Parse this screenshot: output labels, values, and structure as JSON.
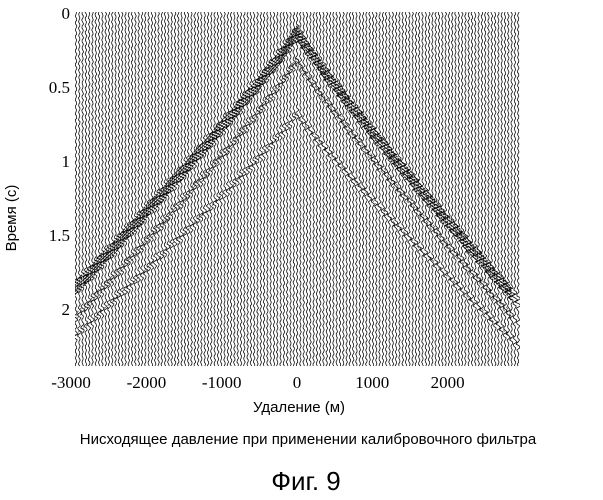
{
  "chart_data": {
    "type": "seismic-gather",
    "xlabel": "Удаление (м)",
    "ylabel": "Время (с)",
    "xticks": [
      -3000,
      -2000,
      -1000,
      0,
      1000,
      2000
    ],
    "yticks": [
      0,
      0.5,
      1,
      1.5,
      2
    ],
    "xlim": [
      -3200,
      2850
    ],
    "ylim": [
      0,
      2.4
    ],
    "y_inverted": true,
    "caption": "Нисходящее давление при применении калибровочного фильтра",
    "figure_label": "Фиг. 9",
    "events": [
      {
        "apex_x": 0,
        "apex_t": 0.13,
        "left_edge_t": 2.0,
        "right_edge_t": 1.9
      },
      {
        "apex_x": 0,
        "apex_t": 0.32,
        "left_edge_t": 2.2,
        "right_edge_t": 2.05
      },
      {
        "apex_x": 0,
        "apex_t": 0.68,
        "left_edge_t": 2.3,
        "right_edge_t": 2.2
      }
    ]
  }
}
